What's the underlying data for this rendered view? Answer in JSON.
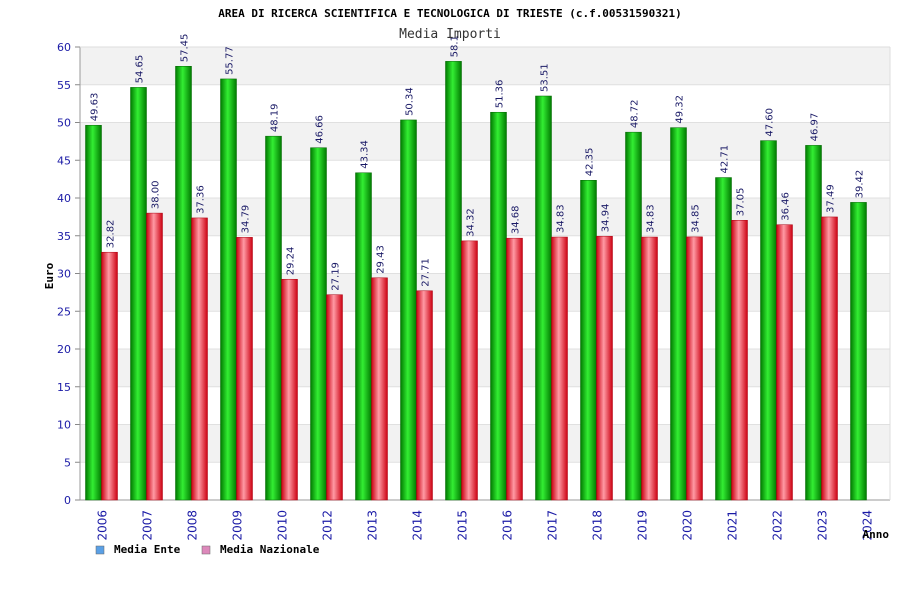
{
  "chart_data": {
    "type": "bar",
    "title": "AREA DI RICERCA SCIENTIFICA E TECNOLOGICA DI TRIESTE (c.f.00531590321)",
    "subtitle": "Media Importi",
    "xlabel": "Anno",
    "ylabel": "Euro",
    "ylim": [
      0,
      60
    ],
    "yticks": [
      "0",
      "5",
      "10",
      "15",
      "20",
      "25",
      "30",
      "35",
      "40",
      "45",
      "50",
      "55",
      "60"
    ],
    "categories": [
      "2006",
      "2007",
      "2008",
      "2009",
      "2010",
      "2012",
      "2013",
      "2014",
      "2015",
      "2016",
      "2017",
      "2018",
      "2019",
      "2020",
      "2021",
      "2022",
      "2023",
      "2024"
    ],
    "series": [
      {
        "name": "Media Ente",
        "color": "#00aa00",
        "values": [
          49.63,
          54.65,
          57.45,
          55.77,
          48.19,
          46.66,
          43.34,
          50.34,
          58.1,
          51.36,
          53.51,
          42.35,
          48.72,
          49.32,
          42.71,
          47.6,
          46.97,
          39.42
        ],
        "labels": [
          "49.63",
          "54.65",
          "57.45",
          "55.77",
          "48.19",
          "46.66",
          "43.34",
          "50.34",
          "58.1",
          "51.36",
          "53.51",
          "42.35",
          "48.72",
          "49.32",
          "42.71",
          "47.60",
          "46.97",
          "39.42"
        ]
      },
      {
        "name": "Media Nazionale",
        "color": "#dd1122",
        "values": [
          32.82,
          38.0,
          37.36,
          34.79,
          29.24,
          27.19,
          29.43,
          27.71,
          34.32,
          34.68,
          34.83,
          34.94,
          34.83,
          34.85,
          37.05,
          36.46,
          37.49,
          null
        ],
        "labels": [
          "32.82",
          "38.00",
          "37.36",
          "34.79",
          "29.24",
          "27.19",
          "29.43",
          "27.71",
          "34.32",
          "34.68",
          "34.83",
          "34.94",
          "34.83",
          "34.85",
          "37.05",
          "36.46",
          "37.49",
          null
        ]
      }
    ],
    "legend": [
      {
        "name": "Media Ente",
        "color": "#5aa0e6"
      },
      {
        "name": "Media Nazionale",
        "color": "#dd88bb"
      }
    ],
    "legend_position": "bottom-left",
    "grid": true
  }
}
